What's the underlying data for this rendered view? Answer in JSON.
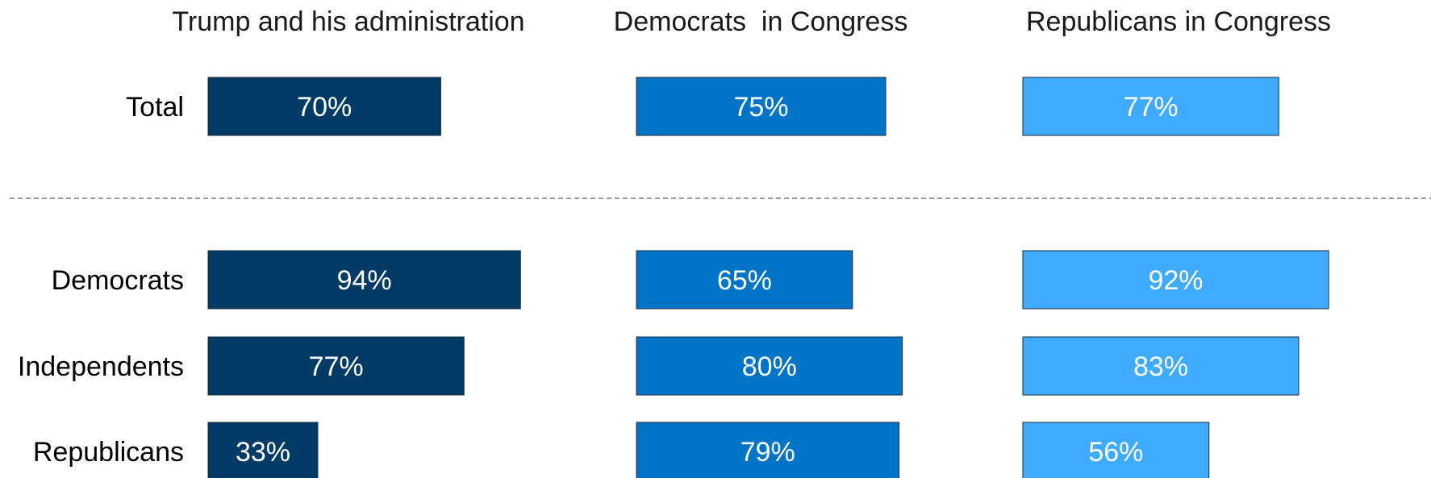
{
  "chart_data": {
    "type": "bar",
    "orientation": "horizontal",
    "panels": [
      {
        "title": "Trump and his administration",
        "color": "#003B65"
      },
      {
        "title": "Democrats  in Congress",
        "color": "#0174C8"
      },
      {
        "title": "Republicans in Congress",
        "color": "#3EABFF"
      }
    ],
    "groups": [
      {
        "rows": [
          "Total"
        ]
      },
      {
        "rows": [
          "Democrats",
          "Independents",
          "Republicans"
        ]
      }
    ],
    "values": {
      "Total": [
        70,
        75,
        77
      ],
      "Democrats": [
        94,
        65,
        92
      ],
      "Independents": [
        77,
        80,
        83
      ],
      "Republicans": [
        33,
        79,
        56
      ]
    },
    "value_format": "{v}%",
    "group_separator": "dashed",
    "grid": false,
    "legend": "none",
    "xlim": [
      0,
      100
    ]
  }
}
